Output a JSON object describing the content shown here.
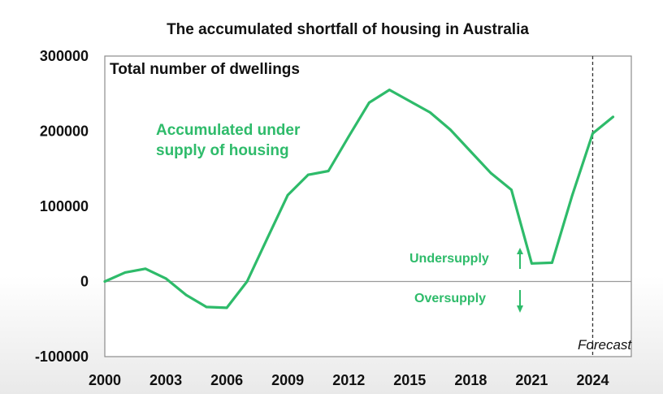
{
  "chart_data": {
    "type": "line",
    "title": "The accumulated shortfall of housing in Australia",
    "subtitle": "Total number of dwellings",
    "xlabel": "",
    "ylabel": "",
    "xlim": [
      2000,
      2025.9
    ],
    "ylim": [
      -100000,
      300000
    ],
    "x_ticks": [
      "2000",
      "2003",
      "2006",
      "2009",
      "2012",
      "2015",
      "2018",
      "2021",
      "2024"
    ],
    "y_ticks": [
      "300000",
      "200000",
      "100000",
      "0",
      "-100000"
    ],
    "grid": false,
    "line_color": "#2ebb6a",
    "series": [
      {
        "x": [
          2000,
          2001,
          2002,
          2003,
          2004,
          2005,
          2006,
          2007,
          2008,
          2009,
          2010,
          2011,
          2012,
          2013,
          2014,
          2015,
          2016,
          2017,
          2018,
          2019,
          2020,
          2021,
          2022,
          2023,
          2024,
          2025
        ],
        "values": [
          0,
          12000,
          17000,
          4000,
          -18000,
          -34000,
          -35000,
          0,
          58000,
          115000,
          142000,
          147000,
          193000,
          238000,
          255000,
          240000,
          225000,
          202000,
          173000,
          144000,
          122000,
          24000,
          25000,
          115000,
          197000,
          219000
        ]
      }
    ],
    "forecast_x": 2024,
    "annotations": {
      "series_label_line1": "Accumulated under",
      "series_label_line2": "supply of housing",
      "undersupply": "Undersupply",
      "oversupply": "Oversupply",
      "forecast": "Forecast"
    }
  }
}
